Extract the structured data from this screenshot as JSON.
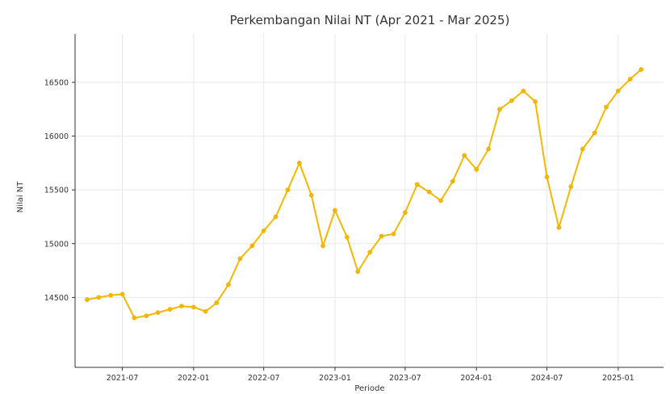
{
  "chart_data": {
    "type": "line",
    "title": "Perkembangan Nilai NT (Apr 2021 - Mar 2025)",
    "xlabel": "Periode",
    "ylabel": "Nilai NT",
    "ylim": [
      13850,
      16950
    ],
    "xlim": [
      "2021-03-01",
      "2025-04-28"
    ],
    "grid": true,
    "x_ticks": [
      "2021-07",
      "2022-01",
      "2022-07",
      "2023-01",
      "2023-07",
      "2024-01",
      "2024-07",
      "2025-01"
    ],
    "y_ticks": [
      14500,
      15000,
      15500,
      16000,
      16500
    ],
    "series": [
      {
        "color": "#f5b800",
        "x": [
          "2021-04",
          "2021-05",
          "2021-06",
          "2021-07",
          "2021-08",
          "2021-09",
          "2021-10",
          "2021-11",
          "2021-12",
          "2022-01",
          "2022-02",
          "2022-03",
          "2022-04",
          "2022-05",
          "2022-06",
          "2022-07",
          "2022-08",
          "2022-09",
          "2022-10",
          "2022-11",
          "2022-12",
          "2023-01",
          "2023-02",
          "2023-03",
          "2023-04",
          "2023-05",
          "2023-06",
          "2023-07",
          "2023-08",
          "2023-09",
          "2023-10",
          "2023-11",
          "2023-12",
          "2024-01",
          "2024-02",
          "2024-03",
          "2024-04",
          "2024-05",
          "2024-06",
          "2024-07",
          "2024-08",
          "2024-09",
          "2024-10",
          "2024-11",
          "2024-12",
          "2025-01",
          "2025-02",
          "2025-03"
        ],
        "y": [
          14480,
          14500,
          14520,
          14530,
          14310,
          14330,
          14360,
          14390,
          14420,
          14410,
          14370,
          14450,
          14620,
          14860,
          14980,
          15120,
          15250,
          15500,
          15750,
          15450,
          14980,
          15310,
          15060,
          14740,
          14920,
          15070,
          15090,
          15290,
          15550,
          15480,
          15400,
          15580,
          15820,
          15690,
          15880,
          16250,
          16330,
          16420,
          16320,
          15620,
          15150,
          15530,
          15880,
          16030,
          16270,
          16420,
          16530,
          16620
        ]
      }
    ]
  }
}
